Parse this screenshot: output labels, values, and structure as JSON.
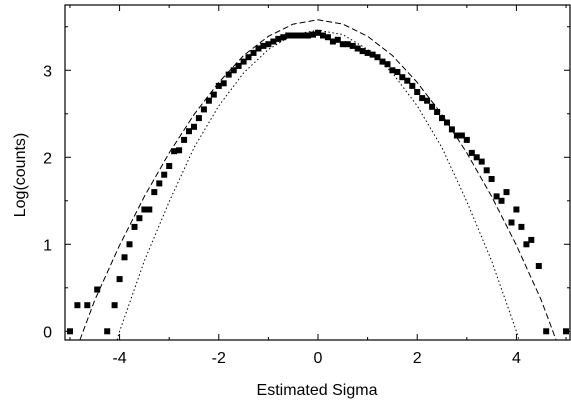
{
  "chart_data": {
    "type": "scatter",
    "title": "",
    "xlabel": "Estimated Sigma",
    "ylabel": "Log(counts)",
    "xlim": [
      -5.1,
      5.1
    ],
    "ylim": [
      -0.1,
      3.75
    ],
    "x_ticks": [
      "-4",
      "-2",
      "0",
      "2",
      "4"
    ],
    "x_tick_values": [
      -4,
      -2,
      0,
      2,
      4
    ],
    "y_ticks": [
      "0",
      "1",
      "2",
      "3"
    ],
    "y_tick_values": [
      0,
      1,
      2,
      3
    ],
    "grid": false,
    "legend": false,
    "colors": {
      "marker": "#000000",
      "axes": "#000000"
    },
    "series": [
      {
        "type": "scatter",
        "marker": "square",
        "x": [
          -5.0,
          -4.85,
          -4.65,
          -4.45,
          -4.25,
          -4.1,
          -4.0,
          -3.9,
          -3.8,
          -3.7,
          -3.6,
          -3.5,
          -3.4,
          -3.3,
          -3.2,
          -3.1,
          -3.0,
          -2.9,
          -2.8,
          -2.7,
          -2.6,
          -2.5,
          -2.4,
          -2.3,
          -2.2,
          -2.1,
          -2.0,
          -1.9,
          -1.8,
          -1.7,
          -1.6,
          -1.5,
          -1.4,
          -1.3,
          -1.2,
          -1.1,
          -1.0,
          -0.9,
          -0.8,
          -0.7,
          -0.6,
          -0.5,
          -0.4,
          -0.3,
          -0.2,
          -0.1,
          0.0,
          0.1,
          0.2,
          0.3,
          0.4,
          0.5,
          0.6,
          0.7,
          0.8,
          0.9,
          1.0,
          1.1,
          1.2,
          1.3,
          1.4,
          1.5,
          1.6,
          1.7,
          1.8,
          1.9,
          2.0,
          2.1,
          2.2,
          2.3,
          2.4,
          2.5,
          2.6,
          2.7,
          2.8,
          2.9,
          3.0,
          3.1,
          3.2,
          3.3,
          3.4,
          3.5,
          3.6,
          3.7,
          3.8,
          3.9,
          4.0,
          4.1,
          4.2,
          4.3,
          4.45,
          4.6,
          5.0
        ],
        "y": [
          0.0,
          0.3,
          0.3,
          0.48,
          0.0,
          0.3,
          0.6,
          0.85,
          1.0,
          1.2,
          1.3,
          1.4,
          1.4,
          1.6,
          1.7,
          1.8,
          1.9,
          2.07,
          2.08,
          2.2,
          2.3,
          2.35,
          2.45,
          2.55,
          2.65,
          2.72,
          2.82,
          2.85,
          2.95,
          3.0,
          3.05,
          3.1,
          3.15,
          3.2,
          3.25,
          3.28,
          3.3,
          3.33,
          3.36,
          3.38,
          3.4,
          3.4,
          3.4,
          3.4,
          3.4,
          3.41,
          3.43,
          3.4,
          3.38,
          3.33,
          3.35,
          3.3,
          3.3,
          3.28,
          3.25,
          3.22,
          3.2,
          3.18,
          3.15,
          3.1,
          3.07,
          3.0,
          2.98,
          2.92,
          2.88,
          2.82,
          2.75,
          2.68,
          2.65,
          2.58,
          2.52,
          2.45,
          2.4,
          2.32,
          2.25,
          2.25,
          2.2,
          2.05,
          2.0,
          1.95,
          1.85,
          1.75,
          1.55,
          1.5,
          1.6,
          1.25,
          1.4,
          1.2,
          1.0,
          1.05,
          0.75,
          0.0,
          0.0
        ]
      },
      {
        "type": "line",
        "style": "dashed",
        "x": [
          -4.8,
          -4.5,
          -4.0,
          -3.5,
          -3.0,
          -2.5,
          -2.0,
          -1.5,
          -1.0,
          -0.5,
          0.0,
          0.5,
          1.0,
          1.5,
          2.0,
          2.5,
          3.0,
          3.5,
          4.0,
          4.5,
          4.8
        ],
        "y": [
          -0.1,
          0.36,
          0.99,
          1.55,
          2.05,
          2.49,
          2.86,
          3.17,
          3.39,
          3.53,
          3.58,
          3.53,
          3.39,
          3.17,
          2.86,
          2.49,
          2.05,
          1.55,
          0.99,
          0.36,
          -0.1
        ]
      },
      {
        "type": "line",
        "style": "dotted",
        "x": [
          -4.05,
          -4.0,
          -3.5,
          -3.0,
          -2.5,
          -2.0,
          -1.5,
          -1.0,
          -0.5,
          0.0,
          0.5,
          1.0,
          1.5,
          2.0,
          2.5,
          3.0,
          3.5,
          4.0,
          4.05
        ],
        "y": [
          -0.1,
          0.0,
          0.81,
          1.49,
          2.11,
          2.59,
          2.97,
          3.24,
          3.41,
          3.46,
          3.41,
          3.24,
          2.97,
          2.59,
          2.11,
          1.49,
          0.81,
          0.0,
          -0.1
        ]
      }
    ]
  }
}
